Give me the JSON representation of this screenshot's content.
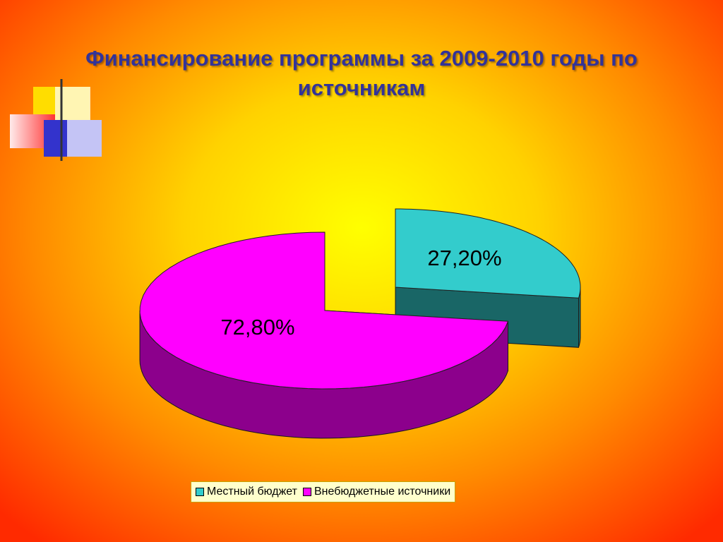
{
  "chart_data": {
    "type": "pie3d",
    "title": "Финансирование программы за 2009-2010 годы по источникам",
    "categories": [
      "Местный бюджет",
      "Внебюджетные источники"
    ],
    "values": [
      27.2,
      72.8
    ],
    "value_labels": [
      "27,20%",
      "72,80%"
    ],
    "colors": [
      "#33cccc",
      "#ff00ff"
    ],
    "legend": "bottom"
  }
}
